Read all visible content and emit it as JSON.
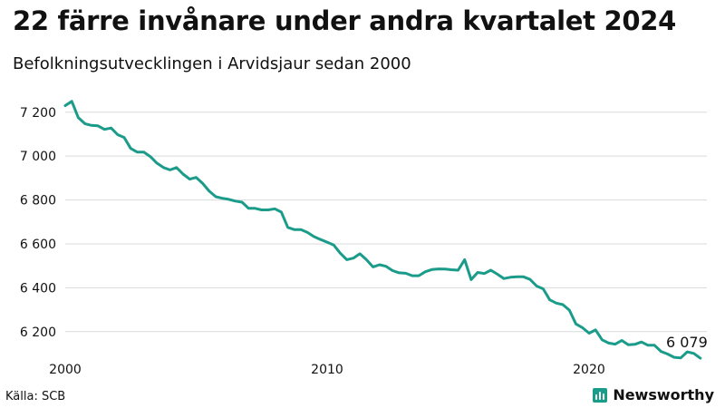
{
  "header": {
    "title": "22 färre invånare under andra kvartalet 2024",
    "subtitle": "Befolkningsutvecklingen i Arvidsjaur sedan 2000"
  },
  "footer": {
    "source": "Källa: SCB",
    "brand": "Newsworthy"
  },
  "colors": {
    "line": "#1b9c8a",
    "grid": "#d9d9d9",
    "brand": "#1b9c8a"
  },
  "chart_data": {
    "type": "line",
    "title": "22 färre invånare under andra kvartalet 2024",
    "subtitle": "Befolkningsutvecklingen i Arvidsjaur sedan 2000",
    "xlabel": "",
    "ylabel": "",
    "grid": true,
    "xlim": [
      2000,
      2024.5
    ],
    "ylim": [
      6100,
      7290
    ],
    "x_ticks": [
      {
        "value": 2000,
        "label": "2000"
      },
      {
        "value": 2010,
        "label": "2010"
      },
      {
        "value": 2020,
        "label": "2020"
      }
    ],
    "y_ticks": [
      {
        "value": 6200,
        "label": "6 200"
      },
      {
        "value": 6400,
        "label": "6 400"
      },
      {
        "value": 6600,
        "label": "6 600"
      },
      {
        "value": 6800,
        "label": "6 800"
      },
      {
        "value": 7000,
        "label": "7 000"
      },
      {
        "value": 7200,
        "label": "7 200"
      }
    ],
    "end_label": "6 079",
    "series": [
      {
        "x": [
          2000.0,
          2000.25,
          2000.5,
          2000.75,
          2001.0,
          2001.25,
          2001.5,
          2001.75,
          2002.0,
          2002.25,
          2002.5,
          2002.75,
          2003.0,
          2003.25,
          2003.5,
          2003.75,
          2004.0,
          2004.25,
          2004.5,
          2004.75,
          2005.0,
          2005.25,
          2005.5,
          2005.75,
          2006.0,
          2006.25,
          2006.5,
          2006.75,
          2007.0,
          2007.25,
          2007.5,
          2007.75,
          2008.0,
          2008.25,
          2008.5,
          2008.75,
          2009.0,
          2009.25,
          2009.5,
          2009.75,
          2010.0,
          2010.25,
          2010.5,
          2010.75,
          2011.0,
          2011.25,
          2011.5,
          2011.75,
          2012.0,
          2012.25,
          2012.5,
          2012.75,
          2013.0,
          2013.25,
          2013.5,
          2013.75,
          2014.0,
          2014.25,
          2014.5,
          2014.75,
          2015.0,
          2015.25,
          2015.5,
          2015.75,
          2016.0,
          2016.25,
          2016.5,
          2016.75,
          2017.0,
          2017.25,
          2017.5,
          2017.75,
          2018.0,
          2018.25,
          2018.5,
          2018.75,
          2019.0,
          2019.25,
          2019.5,
          2019.75,
          2020.0,
          2020.25,
          2020.5,
          2020.75,
          2021.0,
          2021.25,
          2021.5,
          2021.75,
          2022.0,
          2022.25,
          2022.5,
          2022.75,
          2023.0,
          2023.25,
          2023.5,
          2023.75,
          2024.0,
          2024.25
        ],
        "values": [
          7230,
          7250,
          7175,
          7148,
          7140,
          7138,
          7122,
          7128,
          7098,
          7085,
          7035,
          7018,
          7018,
          6998,
          6968,
          6948,
          6937,
          6948,
          6918,
          6895,
          6903,
          6875,
          6840,
          6815,
          6808,
          6803,
          6795,
          6790,
          6762,
          6762,
          6755,
          6755,
          6760,
          6745,
          6675,
          6665,
          6665,
          6652,
          6633,
          6620,
          6608,
          6595,
          6558,
          6528,
          6535,
          6555,
          6528,
          6495,
          6505,
          6498,
          6478,
          6468,
          6466,
          6455,
          6455,
          6473,
          6483,
          6486,
          6485,
          6482,
          6480,
          6528,
          6437,
          6470,
          6465,
          6480,
          6462,
          6442,
          6448,
          6450,
          6450,
          6438,
          6408,
          6395,
          6345,
          6330,
          6323,
          6298,
          6235,
          6218,
          6193,
          6208,
          6163,
          6148,
          6143,
          6160,
          6140,
          6142,
          6153,
          6138,
          6138,
          6110,
          6098,
          6083,
          6080,
          6108,
          6101,
          6079
        ]
      }
    ]
  }
}
